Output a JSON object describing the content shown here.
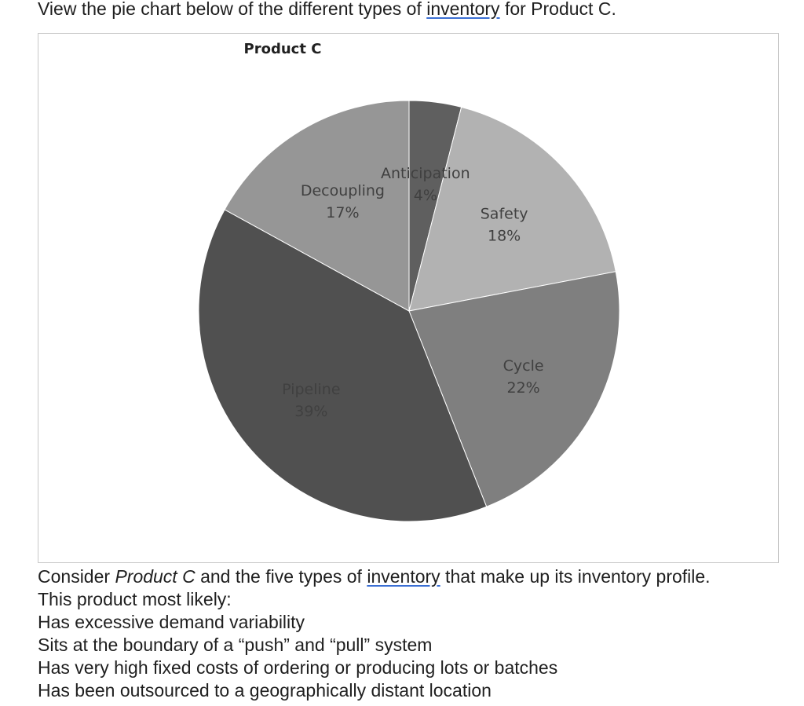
{
  "intro": {
    "before": "View the pie chart below of the different types of ",
    "link": "inventory",
    "after": " for Product C."
  },
  "chart_data": {
    "type": "pie",
    "title": "Product C",
    "slices": [
      {
        "label": "Anticipation",
        "value": 4,
        "value_label": "4%",
        "color": "#5f5f5f"
      },
      {
        "label": "Safety",
        "value": 18,
        "value_label": "18%",
        "color": "#b2b2b2"
      },
      {
        "label": "Cycle",
        "value": 22,
        "value_label": "22%",
        "color": "#7f7f7f"
      },
      {
        "label": "Pipeline",
        "value": 39,
        "value_label": "39%",
        "color": "#505050"
      },
      {
        "label": "Decoupling",
        "value": 17,
        "value_label": "17%",
        "color": "#969696"
      }
    ],
    "legend": "none"
  },
  "question": {
    "line1_before": "Consider ",
    "line1_italic": "Product C",
    "line1_middle": " and the five types of ",
    "line1_link": "inventory",
    "line1_after": " that make up its inventory profile.",
    "line2": "This product most likely:",
    "options": [
      "Has excessive demand variability",
      "Sits at the boundary of a “push” and “pull” system",
      "Has very high fixed costs of ordering or producing lots or batches",
      "Has been outsourced to a geographically distant location"
    ]
  }
}
